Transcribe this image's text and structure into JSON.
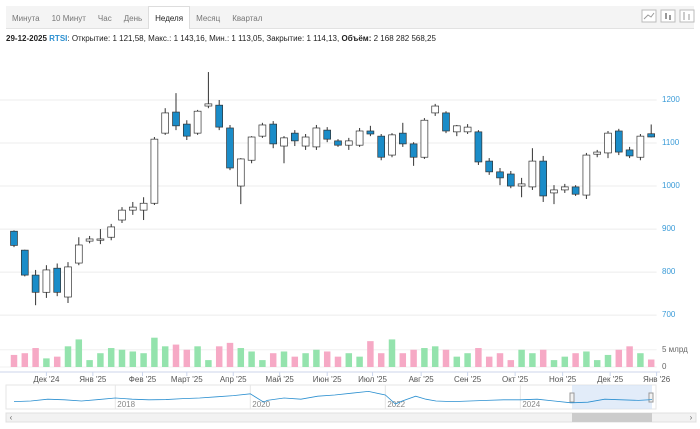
{
  "toolbar": {
    "tabs": [
      "Минута",
      "10 Минут",
      "Час",
      "День",
      "Неделя",
      "Месяц",
      "Квартал"
    ],
    "active": 4
  },
  "header": {
    "date": "29-12-2025",
    "symbol": "RTSI",
    "fields": [
      {
        "label": ": Открытие:",
        "value": "1 121,58,"
      },
      {
        "label": "Макс.:",
        "value": "1 143,16,"
      },
      {
        "label": "Мин.:",
        "value": "1 113,05,"
      },
      {
        "label": "Закрытие:",
        "value": "1 114,13,"
      },
      {
        "label": "Объём:",
        "value": "2 168 282 568,25"
      }
    ]
  },
  "chart_data": [
    {
      "type": "candlestick",
      "open": [
        895,
        851,
        793,
        753,
        809,
        742,
        821,
        872,
        874,
        881,
        921,
        944,
        944,
        960,
        1123,
        1172,
        1144,
        1123,
        1186,
        1188,
        1135,
        1000,
        1060,
        1116,
        1144,
        1093,
        1123,
        1093,
        1091,
        1130,
        1105,
        1095,
        1095,
        1128,
        1116,
        1072,
        1123,
        1098,
        1067,
        1170,
        1170,
        1126,
        1126,
        1126,
        1058,
        1033,
        1028,
        1000,
        998,
        1058,
        984,
        991,
        998,
        979,
        1074,
        1077,
        1128,
        1084,
        1067,
        1121.58
      ],
      "high": [
        897,
        852,
        805,
        816,
        820,
        823,
        881,
        884,
        900,
        912,
        951,
        963,
        974,
        1114,
        1181,
        1216,
        1153,
        1177,
        1265,
        1200,
        1142,
        1065,
        1116,
        1147,
        1151,
        1116,
        1130,
        1121,
        1142,
        1137,
        1109,
        1112,
        1135,
        1140,
        1121,
        1123,
        1147,
        1102,
        1158,
        1191,
        1174,
        1142,
        1144,
        1130,
        1065,
        1042,
        1035,
        1019,
        1088,
        1070,
        1002,
        1005,
        1002,
        1077,
        1084,
        1128,
        1133,
        1091,
        1121,
        1143.16
      ],
      "low": [
        858,
        790,
        723,
        740,
        744,
        728,
        816,
        867,
        865,
        874,
        914,
        933,
        921,
        956,
        1119,
        1130,
        1107,
        1119,
        1181,
        1130,
        1037,
        958,
        1053,
        1112,
        1088,
        1053,
        1093,
        1084,
        1084,
        1102,
        1091,
        1084,
        1091,
        1116,
        1060,
        1067,
        1091,
        1047,
        1063,
        1163,
        1123,
        1116,
        1121,
        1049,
        1026,
        1002,
        995,
        974,
        991,
        963,
        958,
        984,
        977,
        970,
        1067,
        1065,
        1072,
        1065,
        1060,
        1113.05
      ],
      "close": [
        862,
        793,
        753,
        805,
        753,
        812,
        863,
        877,
        877,
        905,
        944,
        951,
        960,
        1109,
        1170,
        1140,
        1116,
        1174,
        1191,
        1137,
        1042,
        1063,
        1114,
        1142,
        1098,
        1112,
        1105,
        1114,
        1135,
        1109,
        1095,
        1105,
        1128,
        1121,
        1067,
        1119,
        1098,
        1067,
        1153,
        1186,
        1128,
        1140,
        1137,
        1056,
        1033,
        1019,
        1000,
        1005,
        1058,
        977,
        991,
        998,
        981,
        1072,
        1079,
        1123,
        1079,
        1070,
        1116,
        1114.13
      ],
      "up_color": "#ffffff",
      "down_color": "#1a8cc8",
      "outline_color": "#333333",
      "xlim": [
        -0.5,
        59.5
      ],
      "xticks": [
        {
          "value": 3,
          "label": "Дек '24"
        },
        {
          "value": 7.3,
          "label": "Янв '25"
        },
        {
          "value": 11.9,
          "label": "Фев '25"
        },
        {
          "value": 16,
          "label": "Март '25"
        },
        {
          "value": 20.3,
          "label": "Апр '25"
        },
        {
          "value": 24.6,
          "label": "Май '25"
        },
        {
          "value": 29,
          "label": "Июн '25"
        },
        {
          "value": 33.2,
          "label": "Июл '25"
        },
        {
          "value": 37.7,
          "label": "Авг '25"
        },
        {
          "value": 42,
          "label": "Сен '25"
        },
        {
          "value": 46.4,
          "label": "Окт '25"
        },
        {
          "value": 50.8,
          "label": "Ноя '25"
        },
        {
          "value": 55.2,
          "label": "Дек '25"
        },
        {
          "value": 59.5,
          "label": "Янв '26"
        }
      ],
      "ylim": [
        670,
        1300
      ],
      "yticks": [
        700,
        800,
        900,
        1000,
        1100,
        1200
      ],
      "grid": true
    },
    {
      "type": "bar",
      "values": [
        3.5,
        4,
        5.5,
        2.5,
        3,
        6,
        8,
        2,
        4,
        5.5,
        5,
        4.5,
        4,
        8.5,
        6,
        6.5,
        5,
        6,
        2,
        6,
        7,
        5.5,
        4.5,
        2,
        4,
        4.5,
        3,
        4,
        5,
        4.5,
        3,
        4,
        3,
        7.5,
        4,
        8,
        4,
        5,
        5.5,
        6,
        5,
        3,
        4,
        5.5,
        3,
        4,
        2,
        5,
        4,
        5,
        2,
        3,
        4,
        4.5,
        2,
        3.5,
        5,
        6,
        4,
        2.17
      ],
      "up_color": "#94e3ad",
      "down_color": "#f6a9c5",
      "ylim": [
        0,
        8.7
      ],
      "yticks": [
        0,
        {
          "value": 5,
          "label": "5 млрд"
        }
      ]
    },
    {
      "type": "line",
      "x": [
        2016.5,
        2016.75,
        2017,
        2017.25,
        2017.5,
        2017.75,
        2018,
        2018.25,
        2018.5,
        2018.75,
        2019,
        2019.25,
        2019.5,
        2019.75,
        2020,
        2020.2,
        2020.25,
        2020.5,
        2020.75,
        2021,
        2021.25,
        2021.5,
        2021.75,
        2022,
        2022.15,
        2022.25,
        2022.45,
        2022.6,
        2022.75,
        2023,
        2023.25,
        2023.5,
        2023.75,
        2024,
        2024.25,
        2024.5,
        2024.75,
        2025,
        2025.25,
        2025.5,
        2025.75,
        2025.95
      ],
      "values": [
        950,
        1000,
        1150,
        1100,
        1000,
        1120,
        1250,
        1150,
        1100,
        1120,
        1200,
        1250,
        1350,
        1450,
        1600,
        900,
        1050,
        1250,
        1150,
        1400,
        1500,
        1650,
        1800,
        1500,
        750,
        1000,
        1400,
        1150,
        1000,
        950,
        1000,
        1050,
        1100,
        1100,
        1150,
        1000,
        850,
        900,
        1150,
        1100,
        1050,
        1115
      ],
      "color": "#2a8fd0",
      "xlim": [
        2016.5,
        2025.95
      ],
      "xticks": [
        2018,
        2020,
        2022,
        2024
      ],
      "ylim": [
        500,
        2000
      ]
    }
  ]
}
